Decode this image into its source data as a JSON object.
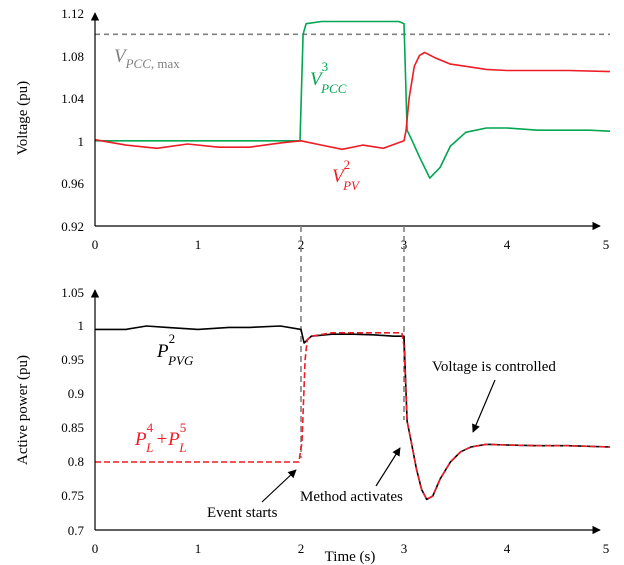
{
  "chart_data": [
    {
      "type": "line",
      "xlabel": "",
      "ylabel": "Voltage (pu)",
      "xlim": [
        0,
        5
      ],
      "ylim": [
        0.92,
        1.12
      ],
      "x_ticks": [
        "0",
        "1",
        "2",
        "3",
        "4",
        "5"
      ],
      "y_ticks": [
        "0.92",
        "0.96",
        "1",
        "1.04",
        "1.08",
        "1.12"
      ],
      "reference_line": {
        "y": 1.1,
        "label_main": "V",
        "label_sub": "PCC,",
        "label_suffix": " max",
        "color": "#808080"
      },
      "series": [
        {
          "label_main": "V",
          "label_sub": "PCC",
          "label_sup": "3",
          "color": "#00a651",
          "x": [
            0,
            1.99,
            2.02,
            2.05,
            2.2,
            2.4,
            2.6,
            2.8,
            2.95,
            3.0,
            3.03,
            3.08,
            3.15,
            3.25,
            3.35,
            3.45,
            3.6,
            3.8,
            4.0,
            4.3,
            4.6,
            4.8,
            5.0
          ],
          "y": [
            1.0,
            1.0,
            1.1,
            1.11,
            1.112,
            1.112,
            1.112,
            1.112,
            1.112,
            1.11,
            1.01,
            1.0,
            0.985,
            0.965,
            0.975,
            0.995,
            1.008,
            1.012,
            1.012,
            1.01,
            1.01,
            1.01,
            1.009
          ]
        },
        {
          "label_main": "V",
          "label_sub": "PV",
          "label_sup": "2",
          "color": "#ee1c25",
          "x": [
            0,
            0.3,
            0.6,
            0.9,
            1.2,
            1.5,
            1.8,
            2.0,
            2.2,
            2.4,
            2.6,
            2.8,
            3.0,
            3.02,
            3.05,
            3.1,
            3.15,
            3.2,
            3.3,
            3.45,
            3.6,
            3.8,
            4.0,
            4.3,
            4.6,
            5.0
          ],
          "y": [
            1.001,
            0.996,
            0.993,
            0.997,
            0.994,
            0.994,
            0.998,
            1.0,
            0.996,
            0.992,
            0.996,
            0.993,
            1.0,
            1.01,
            1.04,
            1.07,
            1.08,
            1.083,
            1.078,
            1.072,
            1.07,
            1.067,
            1.066,
            1.066,
            1.066,
            1.065
          ]
        }
      ]
    },
    {
      "type": "line",
      "xlabel": "Time (s)",
      "ylabel": "Active power (pu)",
      "xlim": [
        0,
        5
      ],
      "ylim": [
        0.7,
        1.05
      ],
      "x_ticks": [
        "0",
        "1",
        "2",
        "3",
        "4",
        "5"
      ],
      "y_ticks": [
        "0.7",
        "0.75",
        "0.8",
        "0.85",
        "0.9",
        "0.95",
        "1",
        "1.05"
      ],
      "series": [
        {
          "label_main": "P",
          "label_sub": "PVG",
          "label_sup": "2",
          "color": "#000000",
          "x": [
            0,
            0.3,
            0.5,
            0.7,
            1.0,
            1.3,
            1.5,
            1.8,
            2.0,
            2.03,
            2.1,
            2.3,
            2.5,
            2.7,
            2.9,
            3.0,
            3.03,
            3.07,
            3.12,
            3.17,
            3.22,
            3.28,
            3.35,
            3.45,
            3.55,
            3.65,
            3.8,
            4.0,
            4.3,
            4.6,
            5.0
          ],
          "y": [
            0.995,
            0.995,
            1.0,
            0.998,
            0.995,
            0.998,
            0.998,
            1.0,
            0.995,
            0.975,
            0.985,
            0.988,
            0.988,
            0.987,
            0.985,
            0.985,
            0.86,
            0.83,
            0.79,
            0.76,
            0.745,
            0.75,
            0.775,
            0.8,
            0.815,
            0.822,
            0.826,
            0.825,
            0.824,
            0.824,
            0.822
          ]
        },
        {
          "label_main": "P",
          "label_sub": "L",
          "label_sup": "4",
          "label_plus": "+P",
          "label_sub2": "L",
          "label_sup2": "5",
          "color": "#ee1c25",
          "x": [
            0,
            1.98,
            2.01,
            2.04,
            2.06,
            2.1,
            2.3,
            2.5,
            2.7,
            2.9,
            2.98,
            3.0,
            3.03,
            3.07,
            3.12,
            3.17,
            3.22,
            3.28,
            3.35,
            3.45,
            3.55,
            3.65,
            3.8,
            4.0,
            4.3,
            4.6,
            5.0
          ],
          "y": [
            0.8,
            0.8,
            0.83,
            0.95,
            0.98,
            0.985,
            0.99,
            0.99,
            0.99,
            0.99,
            0.99,
            0.97,
            0.86,
            0.83,
            0.79,
            0.76,
            0.745,
            0.75,
            0.775,
            0.8,
            0.815,
            0.822,
            0.826,
            0.825,
            0.824,
            0.824,
            0.822
          ]
        }
      ],
      "annotations": [
        "Event starts",
        "Method activates",
        "Voltage is controlled"
      ]
    }
  ]
}
